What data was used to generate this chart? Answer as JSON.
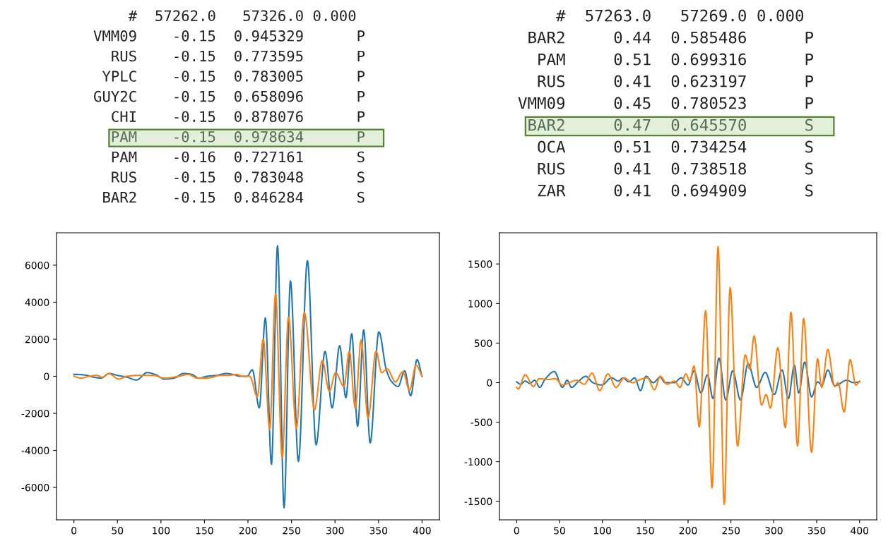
{
  "chart_data": [
    {
      "type": "other",
      "annotations": [
        "    #  57262.0   57326.0 0.000",
        "VMM09    -0.15  0.945329      P",
        "  RUS    -0.15  0.773595      P",
        " YPLC    -0.15  0.783005      P",
        "GUY2C    -0.15  0.658096      P",
        "  CHI    -0.15  0.878076      P",
        "  PAM    -0.15  0.978634      P",
        "  PAM    -0.16  0.727161      S",
        "  RUS    -0.15  0.783048      S",
        " BAR2    -0.15  0.846284      S"
      ]
    },
    {
      "type": "other",
      "annotations": [
        "    #  57263.0   57269.0 0.000",
        " BAR2     0.44  0.585486      P",
        "  PAM     0.51  0.699316      P",
        "  RUS     0.41  0.623197      P",
        "VMM09     0.45  0.780523      P",
        " BAR2     0.47  0.645570      S",
        "  OCA     0.51  0.734254      S",
        "  RUS     0.41  0.738518      S",
        "  ZAR     0.41  0.694909      S"
      ]
    },
    {
      "type": "line",
      "xlim": [
        -20,
        420
      ],
      "xticks": [
        0,
        50,
        100,
        150,
        200,
        250,
        300,
        350,
        400
      ],
      "ylim": [
        -7750,
        7750
      ],
      "yticks": [
        -6000,
        -4000,
        -2000,
        0,
        2000,
        4000,
        6000
      ],
      "series": [
        {
          "color": "#1f77b4",
          "x": [
            0,
            4,
            15,
            23,
            31,
            40.6,
            50,
            61,
            72,
            84,
            93.5,
            104,
            115,
            126,
            135.5,
            143.6,
            153,
            164,
            175,
            183,
            191,
            199,
            205,
            213,
            220,
            227,
            234,
            241.5,
            248.8,
            258,
            268.3,
            278.3,
            288.6,
            296.7,
            305.4,
            312.5,
            319.2,
            326,
            333,
            340.4,
            350.4,
            359,
            364.5,
            372.6,
            380,
            387,
            394.3,
            400
          ],
          "values": [
            100,
            100,
            50,
            -50,
            -100,
            150,
            50,
            -50,
            -200,
            200,
            100,
            -150,
            -100,
            150,
            100,
            -100,
            0,
            50,
            150,
            100,
            0,
            0,
            350,
            -1700,
            3150,
            -4750,
            7050,
            -7100,
            5150,
            -4600,
            6250,
            -3700,
            1350,
            -1700,
            1650,
            -1150,
            2300,
            -2700,
            2500,
            -3600,
            2400,
            350,
            -250,
            -550,
            300,
            -1050,
            900,
            0
          ]
        },
        {
          "color": "#ff7f0e",
          "x": [
            0,
            8,
            17.6,
            26,
            32.5,
            40,
            51.5,
            61,
            74.5,
            91,
            104.3,
            120.6,
            131.5,
            142,
            153,
            169,
            177.5,
            187,
            194,
            202,
            210.8,
            217.6,
            225,
            231.7,
            239.3,
            246.6,
            255.6,
            264.8,
            276.4,
            285.4,
            293.5,
            300.8,
            310.3,
            316.5,
            323.3,
            330,
            338,
            347.2,
            353.7,
            360,
            369.4,
            378,
            385.6,
            393.2,
            400
          ],
          "values": [
            0,
            -100,
            0,
            50,
            -50,
            150,
            -150,
            0,
            50,
            50,
            -100,
            0,
            100,
            -100,
            -100,
            50,
            50,
            100,
            0,
            0,
            -1100,
            2000,
            -2850,
            4450,
            -4400,
            3200,
            -2800,
            3450,
            -1800,
            850,
            -800,
            200,
            -550,
            1350,
            -1700,
            1950,
            -2250,
            1350,
            200,
            400,
            -300,
            250,
            -750,
            600,
            0
          ]
        }
      ]
    },
    {
      "type": "line",
      "xlim": [
        -20,
        420
      ],
      "xticks": [
        0,
        50,
        100,
        150,
        200,
        250,
        300,
        350,
        400
      ],
      "ylim": [
        -1735,
        1895
      ],
      "yticks": [
        -1500,
        -1000,
        -500,
        0,
        500,
        1000,
        1500
      ],
      "series": [
        {
          "color": "#1f77b4",
          "x": [
            0,
            4.6,
            10,
            15.5,
            21,
            27,
            33,
            44,
            53.5,
            59,
            64,
            72.5,
            80.6,
            89,
            99.7,
            110.5,
            118.7,
            124,
            131,
            137.7,
            144.5,
            151,
            159.4,
            167.5,
            173,
            184,
            192,
            200,
            207,
            215,
            222.7,
            229,
            236,
            244,
            252,
            261.2,
            270,
            280,
            290,
            300.6,
            309.6,
            317,
            324,
            329,
            336,
            344,
            351,
            356.3,
            363,
            371,
            385,
            393,
            400
          ],
          "values": [
            10,
            -20,
            20,
            -10,
            30,
            -60,
            40,
            140,
            -60,
            30,
            -60,
            20,
            80,
            0,
            -30,
            60,
            20,
            60,
            10,
            60,
            -100,
            80,
            0,
            70,
            0,
            0,
            60,
            -30,
            150,
            -130,
            100,
            -200,
            310,
            -220,
            150,
            -220,
            240,
            -60,
            130,
            -150,
            160,
            -200,
            220,
            -130,
            260,
            -180,
            10,
            -30,
            160,
            -40,
            30,
            0,
            10
          ]
        },
        {
          "color": "#ff7f0e",
          "x": [
            0,
            2,
            10,
            19.6,
            26.3,
            37,
            45,
            53.5,
            61.6,
            69.8,
            79,
            88,
            97,
            106.4,
            116,
            125.4,
            135,
            144.5,
            152.6,
            160.8,
            167.5,
            175.7,
            184,
            190.6,
            197.4,
            202,
            207,
            213,
            220.5,
            228,
            235,
            242.2,
            249,
            257.7,
            266.7,
            272,
            277,
            285.7,
            291,
            296,
            304.7,
            313.4,
            320,
            327.7,
            334.8,
            344,
            351,
            355.8,
            363,
            371,
            375,
            382,
            389,
            395.7,
            400
          ],
          "values": [
            -60,
            -80,
            100,
            -50,
            50,
            40,
            50,
            -30,
            0,
            30,
            -20,
            120,
            -100,
            110,
            -60,
            60,
            0,
            40,
            60,
            -90,
            80,
            -20,
            20,
            -60,
            110,
            20,
            210,
            -560,
            910,
            -1330,
            1720,
            -1540,
            1200,
            -800,
            350,
            170,
            590,
            -280,
            -150,
            -320,
            440,
            -570,
            890,
            -800,
            810,
            -880,
            300,
            -60,
            420,
            -50,
            0,
            -370,
            290,
            -30,
            20
          ]
        }
      ]
    }
  ]
}
